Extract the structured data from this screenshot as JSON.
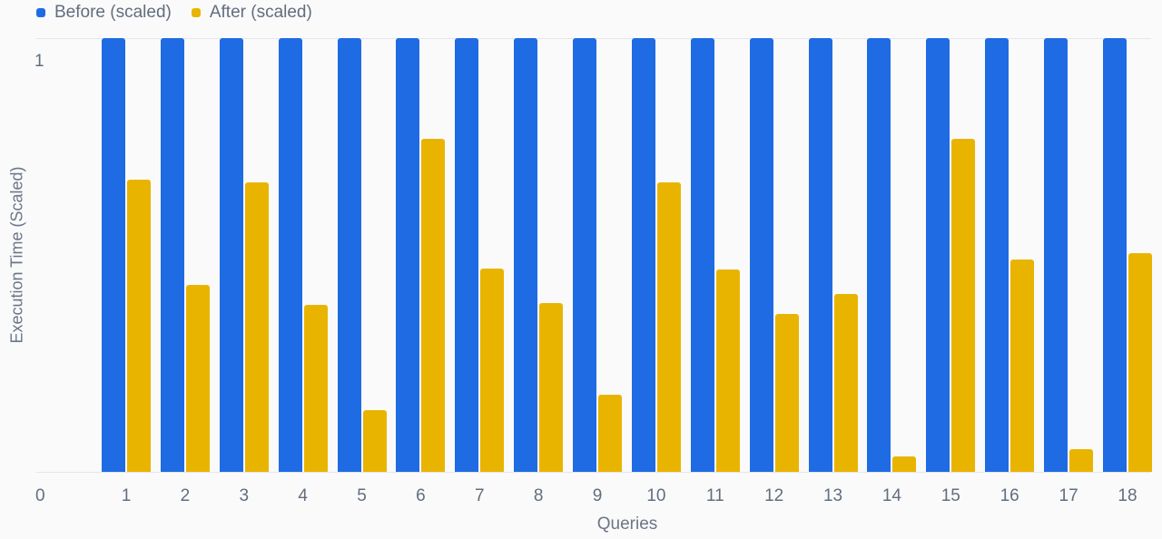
{
  "legend": {
    "items": [
      {
        "label": "Before (scaled)",
        "color": "#1f6be3"
      },
      {
        "label": "After (scaled)",
        "color": "#e9b400"
      }
    ]
  },
  "axes": {
    "y_title": "Execution Time (Scaled)",
    "x_title": "Queries",
    "y_tick_top": "1",
    "x_origin_label": "0"
  },
  "chart_data": {
    "type": "bar",
    "title": "",
    "xlabel": "Queries",
    "ylabel": "Execution Time (Scaled)",
    "ylim": [
      0,
      1
    ],
    "grid": true,
    "legend_position": "top-left",
    "categories": [
      "1",
      "2",
      "3",
      "4",
      "5",
      "6",
      "7",
      "8",
      "9",
      "10",
      "11",
      "12",
      "13",
      "14",
      "15",
      "16",
      "17",
      "18"
    ],
    "series": [
      {
        "name": "Before (scaled)",
        "color": "#1f6be3",
        "values": [
          1,
          1,
          1,
          1,
          1,
          1,
          1,
          1,
          1,
          1,
          1,
          1,
          1,
          1,
          1,
          1,
          1,
          1
        ]
      },
      {
        "name": "After (scaled)",
        "color": "#e9b400",
        "values": [
          0.674,
          0.431,
          0.667,
          0.385,
          0.142,
          0.768,
          0.469,
          0.389,
          0.178,
          0.667,
          0.467,
          0.364,
          0.41,
          0.036,
          0.768,
          0.49,
          0.052,
          0.504
        ]
      }
    ]
  }
}
